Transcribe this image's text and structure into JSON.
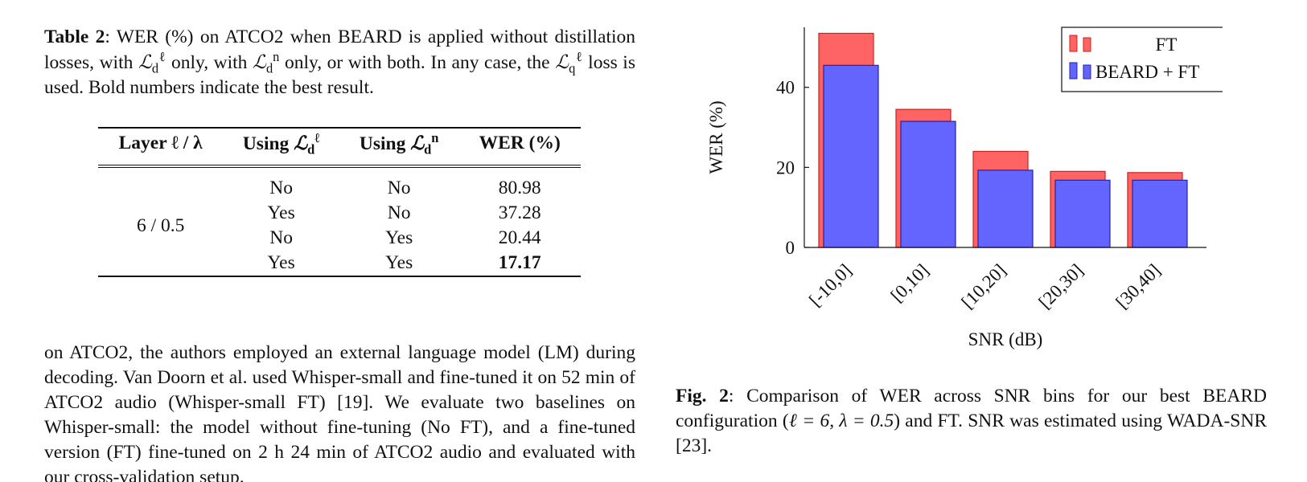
{
  "table_caption": {
    "label": "Table 2",
    "text_1": ": WER (%) on ATCO2 when BEARD is applied without distillation losses, with ",
    "loss_d": "ℒ",
    "sub_d": "d",
    "sup_l": "ℓ",
    "sup_n": "n",
    "text_2": " only, with ",
    "text_3": " only, or with both. In any case, the ",
    "sub_q": "q",
    "text_4": " loss is used. Bold numbers indicate the best result."
  },
  "table": {
    "headers": {
      "layer": "Layer ℓ / λ",
      "using_prefix": "Using ",
      "wer": "WER (%)"
    },
    "layer_value": "6 / 0.5",
    "rows": [
      {
        "using_l": "No",
        "using_n": "No",
        "wer": "80.98"
      },
      {
        "using_l": "Yes",
        "using_n": "No",
        "wer": "37.28"
      },
      {
        "using_l": "No",
        "using_n": "Yes",
        "wer": "20.44"
      },
      {
        "using_l": "Yes",
        "using_n": "Yes",
        "wer": "17.17"
      }
    ]
  },
  "body_text": "on ATCO2, the authors employed an external language model (LM) during decoding. Van Doorn et al. used Whisper-small and fine-tuned it on 52 min of ATCO2 audio (Whisper-small FT) [19]. We evaluate two baselines on Whisper-small: the model without fine-tuning (No FT), and a fine-tuned version (FT) fine-tuned on 2 h 24 min of ATCO2 audio and evaluated with our cross-validation setup.",
  "figure_caption": {
    "label": "Fig. 2",
    "text_1": ": Comparison of WER across SNR bins for our best BEARD configuration (",
    "math": "ℓ = 6, λ = 0.5",
    "text_2": ") and FT. SNR was estimated using WADA-SNR [23]."
  },
  "chart_data": {
    "type": "bar",
    "categories": [
      "[-10,0]",
      "[0,10]",
      "[10,20]",
      "[20,30]",
      "[30,40]"
    ],
    "series": [
      {
        "name": "FT",
        "color": "#ff6464",
        "values": [
          53.5,
          34.5,
          24,
          19,
          18.7
        ]
      },
      {
        "name": "BEARD + FT",
        "color": "#6464ff",
        "values": [
          45.5,
          31.5,
          19.3,
          16.8,
          16.8
        ]
      }
    ],
    "xlabel": "SNR (dB)",
    "ylabel": "WER (%)",
    "yticks": [
      0,
      20,
      40
    ],
    "ylim": [
      0,
      55
    ],
    "legend": "top-right",
    "grid": false
  }
}
